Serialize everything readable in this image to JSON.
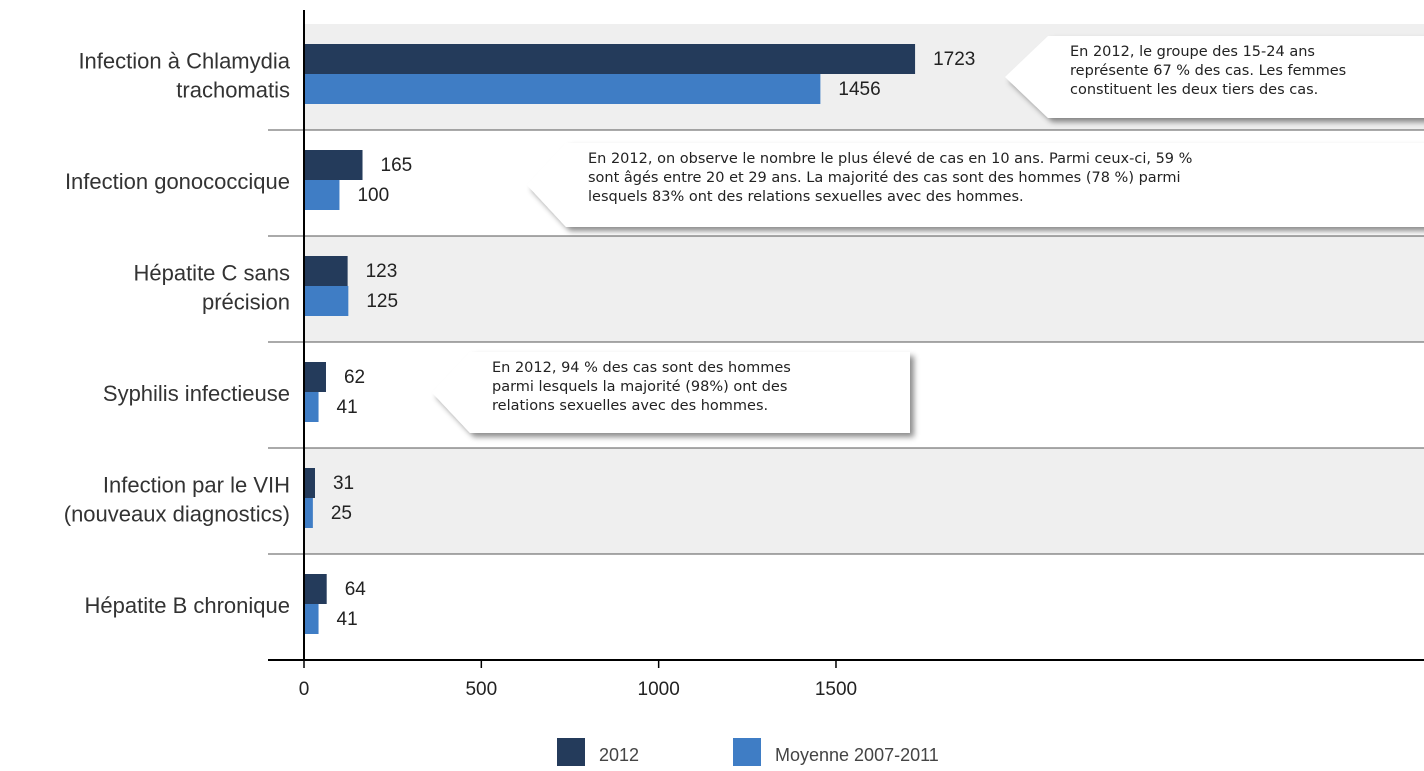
{
  "chart_data": {
    "type": "bar",
    "orientation": "horizontal",
    "categories": [
      [
        "Infection à Chlamydia",
        "trachomatis"
      ],
      [
        "Infection gonococcique"
      ],
      [
        "Hépatite C sans",
        "précision"
      ],
      [
        "Syphilis infectieuse"
      ],
      [
        "Infection par le VIH",
        "(nouveaux diagnostics)"
      ],
      [
        "Hépatite B chronique"
      ]
    ],
    "series": [
      {
        "name": "2012",
        "color": "#243b5b",
        "values": [
          1723,
          165,
          123,
          62,
          31,
          64
        ]
      },
      {
        "name": "Moyenne 2007-2011",
        "color": "#3f7dc5",
        "values": [
          1456,
          100,
          125,
          41,
          25,
          41
        ]
      }
    ],
    "xlim": [
      0,
      3158
    ],
    "xticks": [
      0,
      500,
      1000,
      1500
    ],
    "row_colors": [
      "#efefef",
      "#ffffff"
    ],
    "annotations": [
      {
        "lines": [
          "En 2012, le groupe des 15-24 ans",
          "représente 67 % des cas. Les femmes",
          "constituent les deux tiers des cas."
        ]
      },
      {
        "lines": [
          "En 2012, on observe le nombre le plus élevé de cas en 10 ans. Parmi ceux-ci, 59 %",
          "sont âgés entre 20 et 29 ans. La majorité des cas sont des hommes (78 %) parmi",
          "lesquels 83% ont des relations sexuelles avec des hommes."
        ]
      },
      {
        "lines": [
          "En 2012, 94 % des cas sont des hommes",
          "parmi lesquels la majorité (98%) ont des",
          "relations sexuelles avec des hommes."
        ]
      }
    ]
  }
}
